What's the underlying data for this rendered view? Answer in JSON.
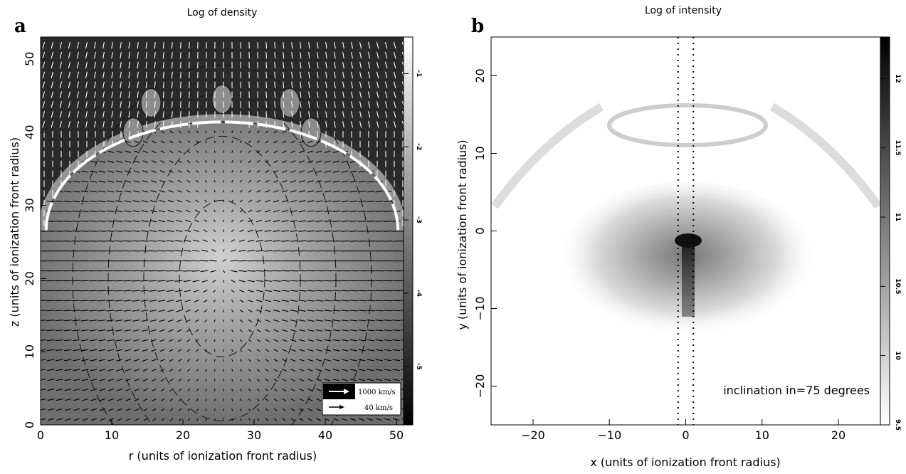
{
  "chart_data": [
    {
      "type": "heatmap",
      "panel": "a",
      "title": "Log of density",
      "xlabel": "r (units of ionization front radius)",
      "ylabel": "z (units of ionization front radius)",
      "xlim": [
        0,
        51
      ],
      "ylim": [
        0,
        53
      ],
      "x_ticks": [
        0,
        10,
        20,
        30,
        40,
        50
      ],
      "y_ticks": [
        0,
        10,
        20,
        30,
        40,
        50
      ],
      "colorbar": {
        "min": -5.8,
        "max": -0.5,
        "ticks": [
          "-1",
          "-2",
          "-3",
          "-4",
          "-5"
        ],
        "tick_values": [
          -1,
          -2,
          -3,
          -4,
          -5
        ]
      },
      "front_arc": {
        "center_r": 25.5,
        "center_z": 26.6,
        "radius": 14.8
      },
      "legend": [
        {
          "label": "1000 km/s",
          "color": "#ffffff"
        },
        {
          "label": "40 km/s",
          "color": "#000000"
        }
      ]
    },
    {
      "type": "heatmap",
      "panel": "b",
      "title": "Log of intensity",
      "xlabel": "x (units of ionization front radius)",
      "ylabel": "y (units of ionization front radius)",
      "xlim": [
        -25.5,
        25.5
      ],
      "ylim": [
        -25,
        25
      ],
      "x_ticks": [
        -20,
        -10,
        0,
        10,
        20
      ],
      "y_ticks": [
        -20,
        -10,
        0,
        10,
        20
      ],
      "colorbar": {
        "min": 9.5,
        "max": 12.3,
        "ticks": [
          "12",
          "11.5",
          "11",
          "10.5",
          "10",
          "9.5"
        ],
        "tick_values": [
          12,
          11.5,
          11,
          10.5,
          10,
          9.5
        ]
      },
      "slit_x": [
        -1,
        1
      ],
      "annotation": "inclination in=75 degrees"
    }
  ]
}
